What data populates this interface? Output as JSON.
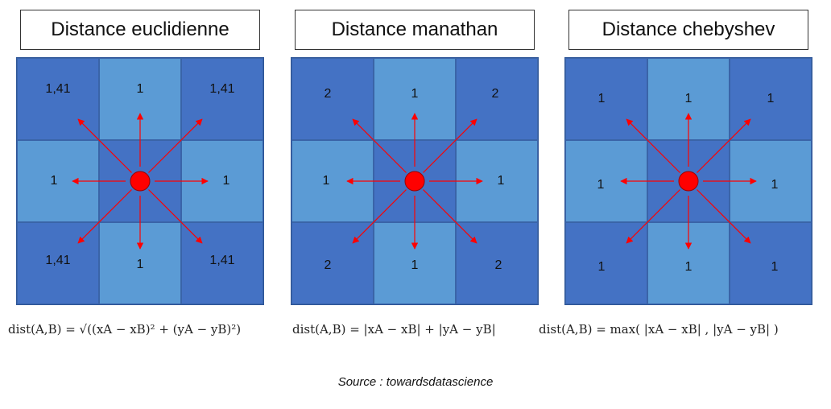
{
  "panels": [
    {
      "title": "Distance euclidienne",
      "labels": [
        "1,41",
        "1",
        "1,41",
        "1",
        "",
        "1",
        "1,41",
        "1",
        "1,41"
      ],
      "formula": "dist(A,B) = √((xA − xB)² + (yA − yB)²)"
    },
    {
      "title": "Distance manathan",
      "labels": [
        "2",
        "1",
        "2",
        "1",
        "",
        "1",
        "2",
        "1",
        "2"
      ],
      "formula": "dist(A,B) = |xA − xB| + |yA − yB|"
    },
    {
      "title": "Distance chebyshev",
      "labels": [
        "1",
        "1",
        "1",
        "1",
        "",
        "1",
        "1",
        "1",
        "1"
      ],
      "formula": "dist(A,B) = max( |xA − xB| , |yA − yB| )"
    }
  ],
  "source": "Source : towardsdatascience",
  "colors": {
    "dark_cell": "#4472c4",
    "light_cell": "#5b9bd5",
    "arrow": "#ff0000",
    "center_point": "#ff0000"
  }
}
